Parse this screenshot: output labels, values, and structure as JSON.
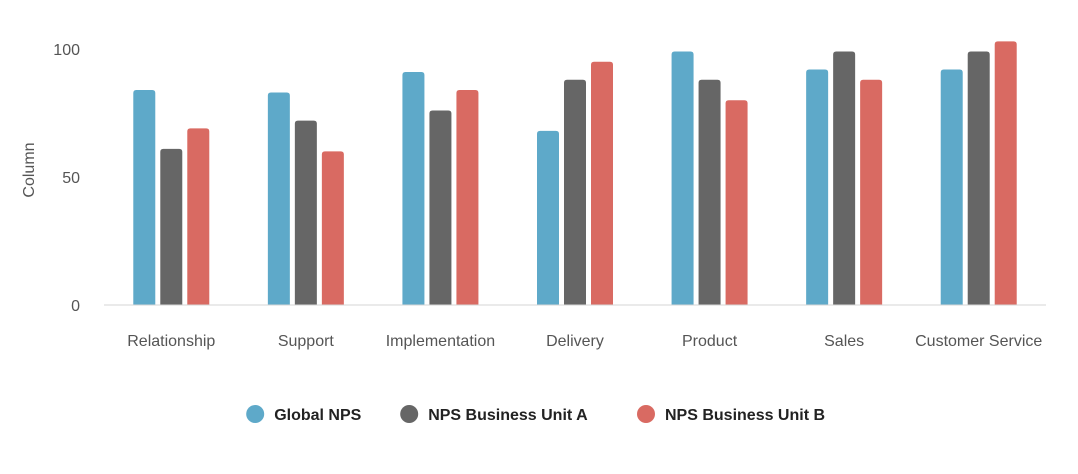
{
  "chart_data": {
    "type": "bar",
    "title": "",
    "xlabel": "",
    "ylabel": "Column",
    "ylim": [
      0,
      100
    ],
    "yticks": [
      0,
      50,
      100
    ],
    "grid": false,
    "legend_position": "bottom",
    "categories": [
      "Relationship",
      "Support",
      "Implementation",
      "Delivery",
      "Product",
      "Sales",
      "Customer Service"
    ],
    "series": [
      {
        "name": "Global NPS",
        "color": "#5ea9c9",
        "values": [
          84,
          83,
          91,
          68,
          99,
          92,
          92
        ]
      },
      {
        "name": "NPS Business Unit A",
        "color": "#666666",
        "values": [
          61,
          72,
          76,
          88,
          88,
          99,
          99
        ]
      },
      {
        "name": "NPS Business Unit B",
        "color": "#d96a62",
        "values": [
          69,
          60,
          84,
          95,
          80,
          88,
          103
        ]
      }
    ]
  }
}
